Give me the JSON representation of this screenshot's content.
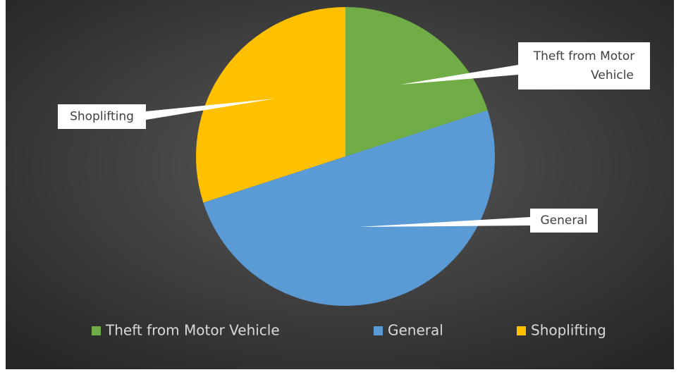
{
  "chart_data": {
    "type": "pie",
    "categories": [
      "Theft from Motor Vehicle",
      "General",
      "Shoplifting"
    ],
    "values": [
      20,
      50,
      30
    ],
    "colors": [
      "#70ad47",
      "#5b9bd5",
      "#ffc000"
    ],
    "legend": "bottom"
  }
}
